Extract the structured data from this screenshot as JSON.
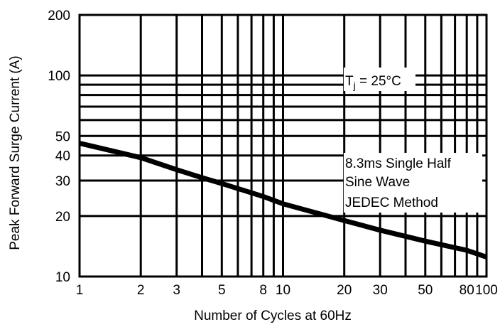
{
  "chart_data": {
    "type": "line",
    "title": "",
    "xlabel": "Number of Cycles at 60Hz",
    "ylabel": "Peak Forward Surge Current (A)",
    "xscale": "log",
    "yscale": "log",
    "xlim": [
      1,
      100
    ],
    "ylim": [
      10,
      200
    ],
    "x_ticks": [
      1,
      2,
      3,
      5,
      8,
      10,
      20,
      30,
      50,
      80,
      100
    ],
    "x_tick_labels": [
      "1",
      "2",
      "3",
      "5",
      "8",
      "10",
      "20",
      "30",
      "50",
      "80",
      "100"
    ],
    "x_gridlines": [
      1,
      2,
      3,
      4,
      5,
      6,
      7,
      8,
      9,
      10,
      20,
      30,
      40,
      50,
      60,
      70,
      80,
      90,
      100
    ],
    "y_ticks": [
      10,
      20,
      30,
      40,
      50,
      100,
      200
    ],
    "y_tick_labels": [
      "10",
      "20",
      "30",
      "40",
      "50",
      "100",
      "200"
    ],
    "y_gridlines": [
      10,
      20,
      30,
      40,
      50,
      60,
      70,
      80,
      90,
      100,
      200
    ],
    "grid": true,
    "series": [
      {
        "x": [
          1,
          2,
          3,
          4,
          5,
          8,
          10,
          20,
          30,
          50,
          80,
          100
        ],
        "y": [
          46,
          39,
          34,
          31,
          29,
          25,
          23,
          19,
          17,
          15,
          13.5,
          12.5
        ]
      }
    ],
    "annotations": {
      "tj": {
        "prefix": "T",
        "sub": "j",
        "suffix": " = 25°C"
      },
      "conditions": [
        "8.3ms Single Half",
        "Sine Wave",
        "JEDEC Method"
      ]
    }
  }
}
